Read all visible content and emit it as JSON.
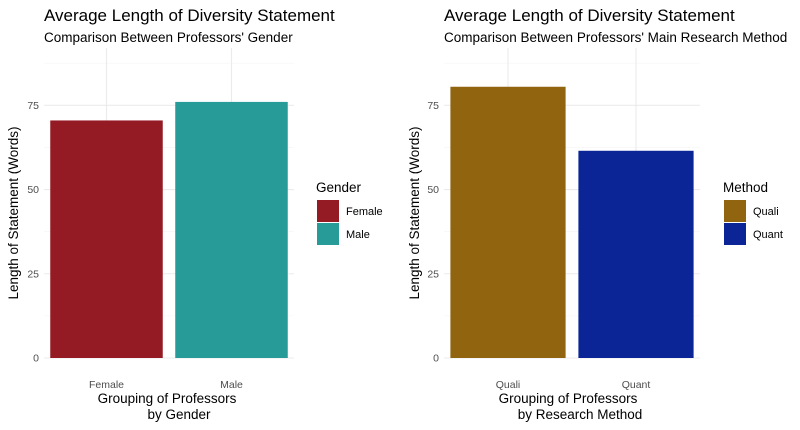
{
  "chart_data": [
    {
      "type": "bar",
      "title": "Average Length of Diversity Statement",
      "subtitle": "Comparison Between Professors' Gender",
      "xlabel": [
        "Grouping of Professors",
        "by Gender"
      ],
      "ylabel": "Length of Statement (Words)",
      "categories": [
        "Female",
        "Male"
      ],
      "values": [
        70.5,
        76
      ],
      "colors": [
        "#941b24",
        "#269b98"
      ],
      "ylim": [
        0,
        92
      ],
      "yticks": [
        0,
        25,
        50,
        75
      ],
      "grid": true,
      "legend": {
        "title": "Gender",
        "position": "right",
        "entries": [
          "Female",
          "Male"
        ]
      }
    },
    {
      "type": "bar",
      "title": "Average Length of Diversity Statement",
      "subtitle": "Comparison Between Professors' Main Research Method",
      "xlabel": [
        "Grouping of Professors",
        "by Research Method"
      ],
      "ylabel": "Length of Statement (Words)",
      "categories": [
        "Quali",
        "Quant"
      ],
      "values": [
        80.5,
        61.5
      ],
      "colors": [
        "#91640f",
        "#0b2596"
      ],
      "ylim": [
        0,
        92
      ],
      "yticks": [
        0,
        25,
        50,
        75
      ],
      "grid": true,
      "legend": {
        "title": "Method",
        "position": "right",
        "entries": [
          "Quali",
          "Quant"
        ]
      }
    }
  ]
}
